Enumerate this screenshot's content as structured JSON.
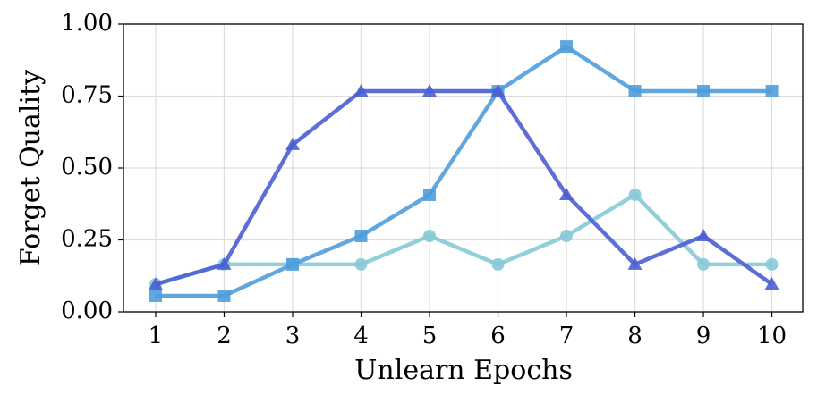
{
  "chart_data": {
    "type": "line",
    "xlabel": "Unlearn Epochs",
    "ylabel": "Forget Quality",
    "x": [
      1,
      2,
      3,
      4,
      5,
      6,
      7,
      8,
      9,
      10
    ],
    "series": [
      {
        "color": "#86cad6",
        "marker": "circle",
        "values": [
          0.096,
          0.165,
          0.165,
          0.165,
          0.264,
          0.165,
          0.264,
          0.407,
          0.165,
          0.165
        ]
      },
      {
        "color": "#4f9ddc",
        "marker": "square",
        "values": [
          0.056,
          0.056,
          0.165,
          0.264,
          0.407,
          0.767,
          0.922,
          0.767,
          0.767,
          0.767
        ]
      },
      {
        "color": "#4a5fd2",
        "marker": "triangle",
        "values": [
          0.096,
          0.165,
          0.581,
          0.767,
          0.767,
          0.767,
          0.407,
          0.165,
          0.264,
          0.096
        ]
      }
    ],
    "xlim": [
      0.53,
      10.45
    ],
    "ylim": [
      0,
      1
    ],
    "xticks": [
      1,
      2,
      3,
      4,
      5,
      6,
      7,
      8,
      9,
      10
    ],
    "yticks": [
      {
        "value": 0,
        "label": "0.00"
      },
      {
        "value": 0.25,
        "label": "0.25"
      },
      {
        "value": 0.5,
        "label": "0.50"
      },
      {
        "value": 0.75,
        "label": "0.75"
      },
      {
        "value": 1,
        "label": "1.00"
      }
    ],
    "grid": true
  }
}
